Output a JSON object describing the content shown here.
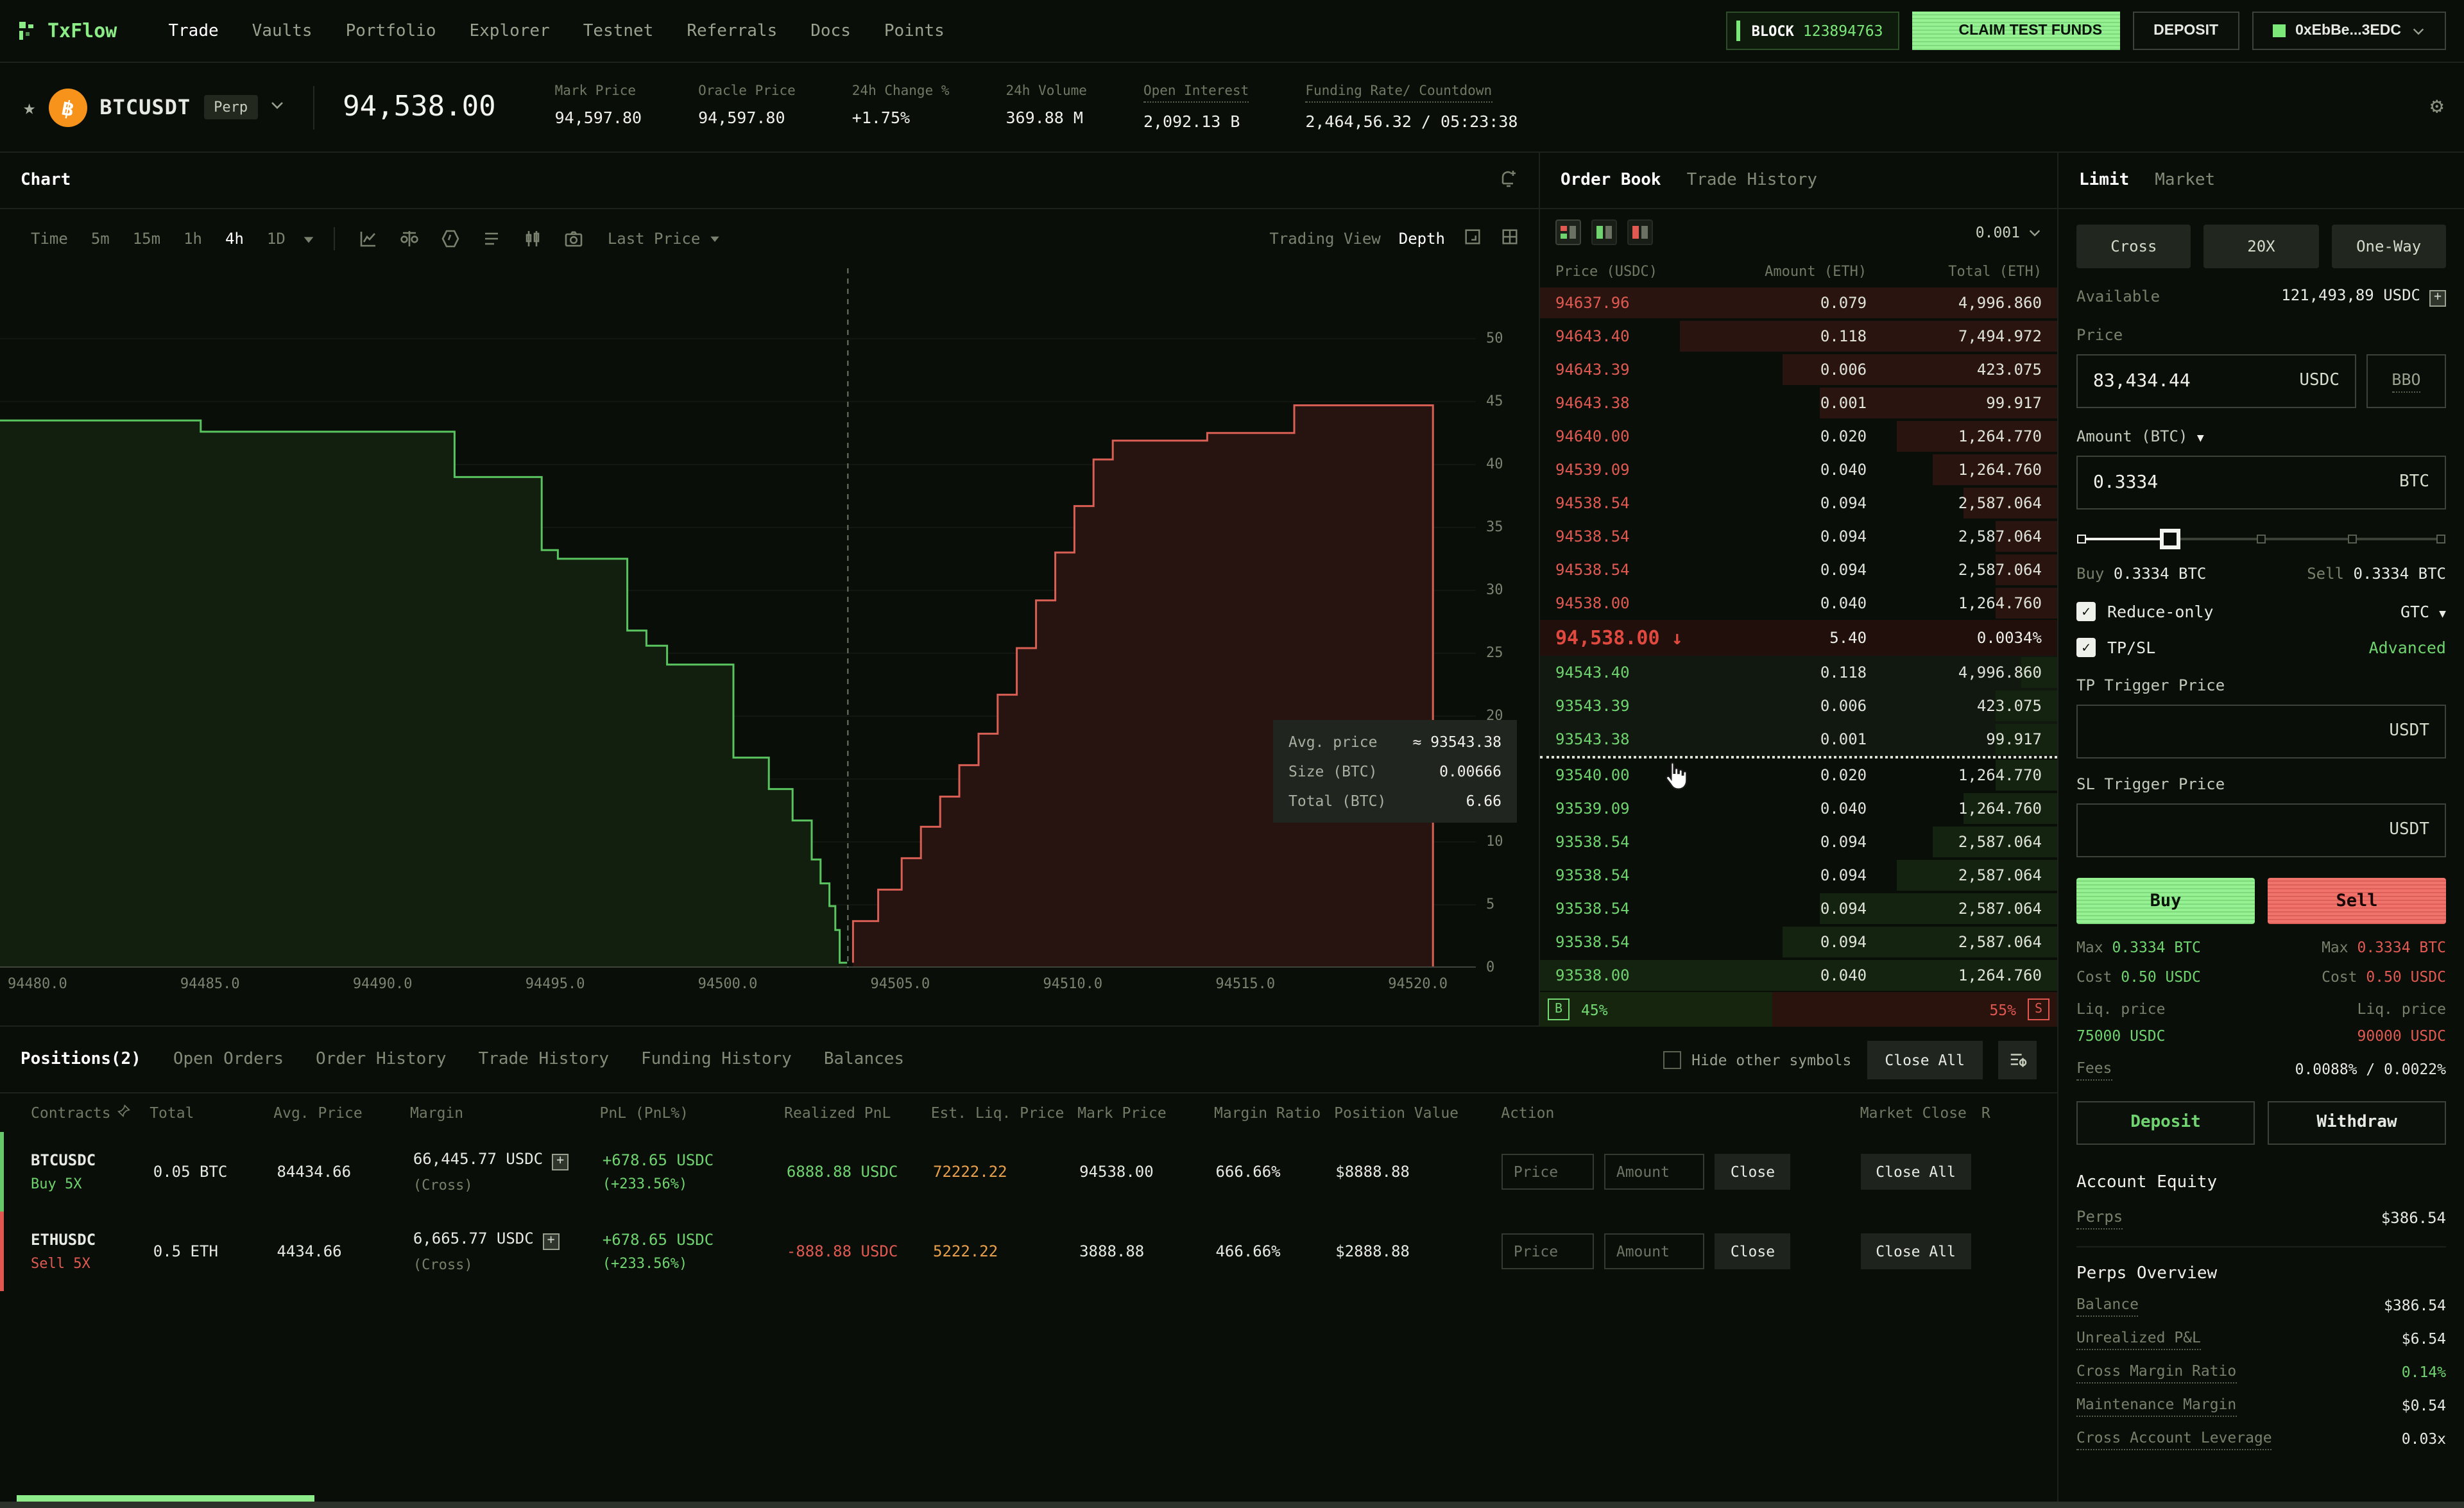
{
  "nav": {
    "logo": "TxFlow",
    "items": [
      {
        "label": "Trade",
        "cls": "active"
      },
      {
        "label": "Vaults",
        "cls": ""
      },
      {
        "label": "Portfolio",
        "cls": ""
      },
      {
        "label": "Explorer",
        "cls": ""
      },
      {
        "label": "Testnet",
        "cls": ""
      },
      {
        "label": "Referrals",
        "cls": ""
      },
      {
        "label": "Docs",
        "cls": ""
      },
      {
        "label": "Points",
        "cls": ""
      }
    ],
    "block": {
      "label": "BLOCK",
      "number": "123894763"
    },
    "claim_button": "CLAIM TEST FUNDS",
    "deposit_button": "DEPOSIT",
    "wallet": "0xEbBe...3EDC"
  },
  "ticker": {
    "symbol": "BTCUSDT",
    "badge": "Perp",
    "btc_glyph": "฿",
    "price": "94,538.00",
    "stats": [
      {
        "label": "Mark Price",
        "value": "94,597.80",
        "vcls": "",
        "lcls": ""
      },
      {
        "label": "Oracle Price",
        "value": "94,597.80",
        "vcls": "",
        "lcls": ""
      },
      {
        "label": "24h Change %",
        "value": "+1.75%",
        "vcls": "green",
        "lcls": ""
      },
      {
        "label": "24h Volume",
        "value": "369.88 M",
        "vcls": "",
        "lcls": ""
      },
      {
        "label": "Open Interest",
        "value": "2,092.13 B",
        "vcls": "",
        "lcls": "dotted"
      },
      {
        "label": "Funding Rate/ Countdown",
        "value": "2,464,56.32 / 05:23:38",
        "vcls": "",
        "lcls": "dotted"
      }
    ]
  },
  "chart": {
    "title": "Chart",
    "timeframes": [
      {
        "label": "Time",
        "cls": ""
      },
      {
        "label": "5m",
        "cls": ""
      },
      {
        "label": "15m",
        "cls": ""
      },
      {
        "label": "1h",
        "cls": ""
      },
      {
        "label": "4h",
        "cls": "active"
      },
      {
        "label": "1D",
        "cls": ""
      }
    ],
    "price_source": "Last Price",
    "views": [
      {
        "label": "Trading View",
        "cls": ""
      },
      {
        "label": "Depth",
        "cls": "active"
      }
    ],
    "tooltip": [
      {
        "label": "Avg. price",
        "value": "≈ 93543.38"
      },
      {
        "label": "Size (BTC)",
        "value": "0.00666"
      },
      {
        "label": "Total (BTC)",
        "value": "6.66"
      }
    ],
    "chart_data": {
      "type": "area",
      "title": "BTCUSDT depth",
      "x_axis_labels": [
        "94480.0",
        "94485.0",
        "94490.0",
        "94495.0",
        "94500.0",
        "94505.0",
        "94510.0",
        "94515.0",
        "94520.0"
      ],
      "y_ticks": [
        "0",
        "5",
        "10",
        "15",
        "20",
        "25",
        "30",
        "35",
        "40",
        "45",
        "50"
      ],
      "ylim": [
        0,
        55.6
      ],
      "y_scale_max": 55.6,
      "mid_x": 0.5745,
      "bid_curve": [
        [
          0,
          43.5
        ],
        [
          0.136,
          43.5
        ],
        [
          0.136,
          42.6
        ],
        [
          0.308,
          42.6
        ],
        [
          0.308,
          39.0
        ],
        [
          0.367,
          39.0
        ],
        [
          0.367,
          33.2
        ],
        [
          0.378,
          33.2
        ],
        [
          0.378,
          32.5
        ],
        [
          0.425,
          32.5
        ],
        [
          0.425,
          26.8
        ],
        [
          0.438,
          26.8
        ],
        [
          0.438,
          25.6
        ],
        [
          0.452,
          25.6
        ],
        [
          0.452,
          24.1
        ],
        [
          0.497,
          24.1
        ],
        [
          0.497,
          16.7
        ],
        [
          0.521,
          16.7
        ],
        [
          0.521,
          14.2
        ],
        [
          0.537,
          14.2
        ],
        [
          0.537,
          11.7
        ],
        [
          0.55,
          11.7
        ],
        [
          0.55,
          8.6
        ],
        [
          0.556,
          8.6
        ],
        [
          0.556,
          6.7
        ],
        [
          0.562,
          6.7
        ],
        [
          0.562,
          4.9
        ],
        [
          0.566,
          4.9
        ],
        [
          0.566,
          3.0
        ],
        [
          0.569,
          3.0
        ],
        [
          0.569,
          0.4
        ],
        [
          0.574,
          0.4
        ]
      ],
      "ask_curve": [
        [
          0.578,
          0.4
        ],
        [
          0.578,
          3.7
        ],
        [
          0.595,
          3.7
        ],
        [
          0.595,
          6.2
        ],
        [
          0.611,
          6.2
        ],
        [
          0.611,
          8.7
        ],
        [
          0.624,
          8.7
        ],
        [
          0.624,
          11.2
        ],
        [
          0.637,
          11.2
        ],
        [
          0.637,
          13.6
        ],
        [
          0.65,
          13.6
        ],
        [
          0.65,
          16.1
        ],
        [
          0.663,
          16.1
        ],
        [
          0.663,
          18.6
        ],
        [
          0.676,
          18.6
        ],
        [
          0.676,
          21.7
        ],
        [
          0.689,
          21.7
        ],
        [
          0.689,
          25.4
        ],
        [
          0.702,
          25.4
        ],
        [
          0.702,
          29.2
        ],
        [
          0.715,
          29.2
        ],
        [
          0.715,
          33.0
        ],
        [
          0.728,
          33.0
        ],
        [
          0.728,
          36.7
        ],
        [
          0.741,
          36.7
        ],
        [
          0.741,
          40.4
        ],
        [
          0.754,
          40.4
        ],
        [
          0.754,
          41.9
        ],
        [
          0.818,
          41.9
        ],
        [
          0.818,
          42.5
        ],
        [
          0.877,
          42.5
        ],
        [
          0.877,
          44.7
        ],
        [
          0.971,
          44.7
        ],
        [
          0.971,
          0
        ]
      ],
      "colors": {
        "bid_line": "#58c35f",
        "bid_fill": "#131f0e",
        "ask_line": "#d95f55",
        "ask_fill": "#27130f",
        "mid_line": "#707866",
        "grid": "rgba(255,255,255,0.04)",
        "baseline": "#3f443b"
      }
    }
  },
  "orderbook": {
    "tabs": [
      {
        "label": "Order Book",
        "cls": "active"
      },
      {
        "label": "Trade History",
        "cls": ""
      }
    ],
    "precision": "0.001",
    "columns": [
      "Price (USDC)",
      "Amount (ETH)",
      "Total (ETH)"
    ],
    "asks": [
      {
        "price": "94637.96",
        "amount": "0.079",
        "total": "4,996.860",
        "bar": 100
      },
      {
        "price": "94643.40",
        "amount": "0.118",
        "total": "7,494.972",
        "bar": 73
      },
      {
        "price": "94643.39",
        "amount": "0.006",
        "total": "423.075",
        "bar": 53
      },
      {
        "price": "94643.38",
        "amount": "0.001",
        "total": "99.917",
        "bar": 46
      },
      {
        "price": "94640.00",
        "amount": "0.020",
        "total": "1,264.770",
        "bar": 31
      },
      {
        "price": "94539.09",
        "amount": "0.040",
        "total": "1,264.760",
        "bar": 24
      },
      {
        "price": "94538.54",
        "amount": "0.094",
        "total": "2,587.064",
        "bar": 18
      },
      {
        "price": "94538.54",
        "amount": "0.094",
        "total": "2,587.064",
        "bar": 12
      },
      {
        "price": "94538.54",
        "amount": "0.094",
        "total": "2,587.064",
        "bar": 12
      },
      {
        "price": "94538.00",
        "amount": "0.040",
        "total": "1,264.760",
        "bar": 12
      }
    ],
    "mid": {
      "price": "94,538.00",
      "arrow": "↓",
      "size": "5.40",
      "pct": "0.0034%"
    },
    "bids_top": [
      {
        "price": "94543.40",
        "amount": "0.118",
        "total": "4,996.860",
        "bar": 7
      },
      {
        "price": "93543.39",
        "amount": "0.006",
        "total": "423.075",
        "bar": 12
      },
      {
        "price": "93543.38",
        "amount": "0.001",
        "total": "99.917",
        "bar": 12
      }
    ],
    "bids_rest": [
      {
        "price": "93540.00",
        "amount": "0.020",
        "total": "1,264.770",
        "bar": 12
      },
      {
        "price": "93539.09",
        "amount": "0.040",
        "total": "1,264.760",
        "bar": 18
      },
      {
        "price": "93538.54",
        "amount": "0.094",
        "total": "2,587.064",
        "bar": 24
      },
      {
        "price": "93538.54",
        "amount": "0.094",
        "total": "2,587.064",
        "bar": 31
      },
      {
        "price": "93538.54",
        "amount": "0.094",
        "total": "2,587.064",
        "bar": 46
      },
      {
        "price": "93538.54",
        "amount": "0.094",
        "total": "2,587.064",
        "bar": 53
      },
      {
        "price": "93538.00",
        "amount": "0.040",
        "total": "1,264.760",
        "bar": 100
      }
    ],
    "summary": {
      "buy_label": "B",
      "buy_pct": "45%",
      "sell_pct": "55%",
      "sell_label": "S"
    }
  },
  "order_form": {
    "tabs": [
      {
        "label": "Limit",
        "cls": "active"
      },
      {
        "label": "Market",
        "cls": ""
      }
    ],
    "mode_buttons": [
      "Cross",
      "20X",
      "One-Way"
    ],
    "available_label": "Available",
    "available_value": "121,493,89 USDC",
    "price_label": "Price",
    "price_value": "83,434.44",
    "price_unit": "USDC",
    "bbo": "BBO",
    "amount_label": "Amount (BTC)",
    "amount_value": "0.3334",
    "amount_unit": "BTC",
    "buy_summary_label": "Buy",
    "buy_summary_value": "0.3334 BTC",
    "sell_summary_label": "Sell",
    "sell_summary_value": "0.3334 BTC",
    "reduce_only": "Reduce-only",
    "tif": "GTC",
    "tpsl": "TP/SL",
    "advanced": "Advanced",
    "tp_label": "TP Trigger Price",
    "tp_unit": "USDT",
    "sl_label": "SL Trigger Price",
    "sl_unit": "USDT",
    "buy_button": "Buy",
    "sell_button": "Sell",
    "max_label": "Max",
    "max_buy": "0.3334 BTC",
    "max_sell": "0.3334 BTC",
    "cost_label": "Cost",
    "cost_buy": "0.50 USDC",
    "cost_sell": "0.50 USDC",
    "liq_label": "Liq. price",
    "liq_buy": "75000 USDC",
    "liq_sell": "90000 USDC",
    "fees_label": "Fees",
    "fees_value": "0.0088% / 0.0022%"
  },
  "account": {
    "deposit": "Deposit",
    "withdraw": "Withdraw",
    "equity_title": "Account Equity",
    "equity_rows": [
      {
        "label": "Perps",
        "value": "$386.54",
        "cls": "white"
      }
    ],
    "overview_title": "Perps Overview",
    "overview_rows": [
      {
        "label": "Balance",
        "value": "$386.54",
        "cls": "white"
      },
      {
        "label": "Unrealized P&L",
        "value": "$6.54",
        "cls": "white"
      },
      {
        "label": "Cross Margin Ratio",
        "value": "0.14%",
        "cls": "green"
      },
      {
        "label": "Maintenance Margin",
        "value": "$0.54",
        "cls": "white"
      },
      {
        "label": "Cross Account Leverage",
        "value": "0.03x",
        "cls": "white"
      }
    ]
  },
  "positions": {
    "tabs": [
      {
        "label": "Positions(2)",
        "cls": "active"
      },
      {
        "label": "Open Orders",
        "cls": ""
      },
      {
        "label": "Order History",
        "cls": ""
      },
      {
        "label": "Trade History",
        "cls": ""
      },
      {
        "label": "Funding History",
        "cls": ""
      },
      {
        "label": "Balances",
        "cls": ""
      }
    ],
    "hide_label": "Hide other symbols",
    "close_all_button": "Close All",
    "columns": [
      "Contracts",
      "Total",
      "Avg. Price",
      "Margin",
      "PnL (PnL%)",
      "Realized PnL",
      "Est. Liq. Price",
      "Mark Price",
      "Margin Ratio",
      "Position Value",
      "Action",
      "Market Close",
      "R"
    ],
    "rows": [
      {
        "contract": "BTCUSDC",
        "side": "Buy 5X",
        "side_cls": "green",
        "border_cls": "green-border",
        "total": "0.05 BTC",
        "avg": "84434.66",
        "margin": "66,445.77 USDC",
        "margin_mode": "(Cross)",
        "pnl": "+678.65 USDC",
        "pnl_pct": "(+233.56%)",
        "realized": "6888.88 USDC",
        "realized_cls": "green",
        "est_liq": "72222.22",
        "mark": "94538.00",
        "ratio": "666.66%",
        "value": "$8888.88",
        "price_ph": "Price",
        "amount_ph": "Amount",
        "close": "Close",
        "close_all": "Close All"
      },
      {
        "contract": "ETHUSDC",
        "side": "Sell 5X",
        "side_cls": "red",
        "border_cls": "red-border",
        "total": "0.5 ETH",
        "avg": "4434.66",
        "margin": "6,665.77 USDC",
        "margin_mode": "(Cross)",
        "pnl": "+678.65 USDC",
        "pnl_pct": "(+233.56%)",
        "realized": "-888.88 USDC",
        "realized_cls": "red",
        "est_liq": "5222.22",
        "mark": "3888.88",
        "ratio": "466.66%",
        "value": "$2888.88",
        "price_ph": "Price",
        "amount_ph": "Amount",
        "close": "Close",
        "close_all": "Close All"
      }
    ]
  }
}
